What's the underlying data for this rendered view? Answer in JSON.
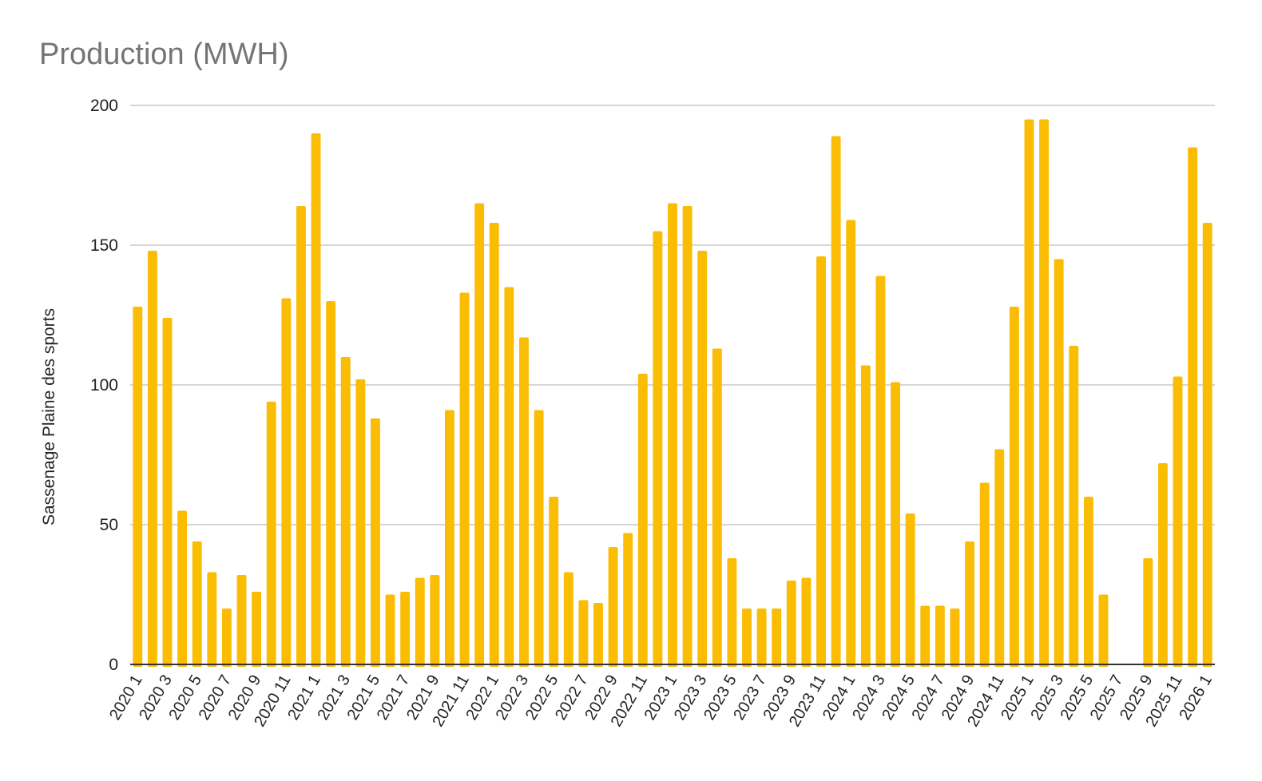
{
  "chart_data": {
    "type": "bar",
    "title": "Production (MWH)",
    "ylabel": "Sassenage Plaine des sports",
    "xlabel": "",
    "ylim": [
      0,
      200
    ],
    "yticks": [
      0,
      50,
      100,
      150,
      200
    ],
    "grid": true,
    "bar_color": "#FBBC04",
    "categories": [
      "2020 1",
      "2020 2",
      "2020 3",
      "2020 4",
      "2020 5",
      "2020 6",
      "2020 7",
      "2020 8",
      "2020 9",
      "2020 10",
      "2020 11",
      "2020 12",
      "2021 1",
      "2021 2",
      "2021 3",
      "2021 4",
      "2021 5",
      "2021 6",
      "2021 7",
      "2021 8",
      "2021 9",
      "2021 10",
      "2021 11",
      "2021 12",
      "2022 1",
      "2022 2",
      "2022 3",
      "2022 4",
      "2022 5",
      "2022 6",
      "2022 7",
      "2022 8",
      "2022 9",
      "2022 10",
      "2022 11",
      "2022 12",
      "2023 1",
      "2023 2",
      "2023 3",
      "2023 4",
      "2023 5",
      "2023 6",
      "2023 7",
      "2023 8",
      "2023 9",
      "2023 10",
      "2023 11",
      "2023 12",
      "2024 1",
      "2024 2",
      "2024 3",
      "2024 4",
      "2024 5",
      "2024 6",
      "2024 7",
      "2024 8",
      "2024 9",
      "2024 10",
      "2024 11",
      "2024 12",
      "2025 1",
      "2025 2",
      "2025 3",
      "2025 4",
      "2025 5",
      "2025 6",
      "2025 7",
      "2025 8",
      "2025 9",
      "2025 10",
      "2025 11",
      "2025 12",
      "2026 1"
    ],
    "tick_labels": [
      "2020 1",
      "2020 3",
      "2020 5",
      "2020 7",
      "2020 9",
      "2020 11",
      "2021 1",
      "2021 3",
      "2021 5",
      "2021 7",
      "2021 9",
      "2021 11",
      "2022 1",
      "2022 3",
      "2022 5",
      "2022 7",
      "2022 9",
      "2022 11",
      "2023 1",
      "2023 3",
      "2023 5",
      "2023 7",
      "2023 9",
      "2023 11",
      "2024 1",
      "2024 3",
      "2024 5",
      "2024 7",
      "2024 9",
      "2024 11",
      "2025 1",
      "2025 3",
      "2025 5",
      "2025 7",
      "2025 9",
      "2025 11",
      "2026 1"
    ],
    "values": [
      128,
      148,
      124,
      55,
      44,
      33,
      20,
      32,
      26,
      94,
      131,
      164,
      190,
      130,
      110,
      102,
      88,
      25,
      26,
      31,
      32,
      91,
      133,
      165,
      158,
      135,
      117,
      91,
      60,
      33,
      23,
      22,
      42,
      47,
      104,
      155,
      165,
      164,
      148,
      113,
      38,
      20,
      20,
      20,
      30,
      31,
      146,
      189,
      159,
      107,
      139,
      101,
      54,
      21,
      21,
      20,
      44,
      65,
      77,
      128,
      195,
      195,
      145,
      114,
      60,
      25,
      0,
      0,
      38,
      72,
      103,
      185,
      158
    ]
  }
}
